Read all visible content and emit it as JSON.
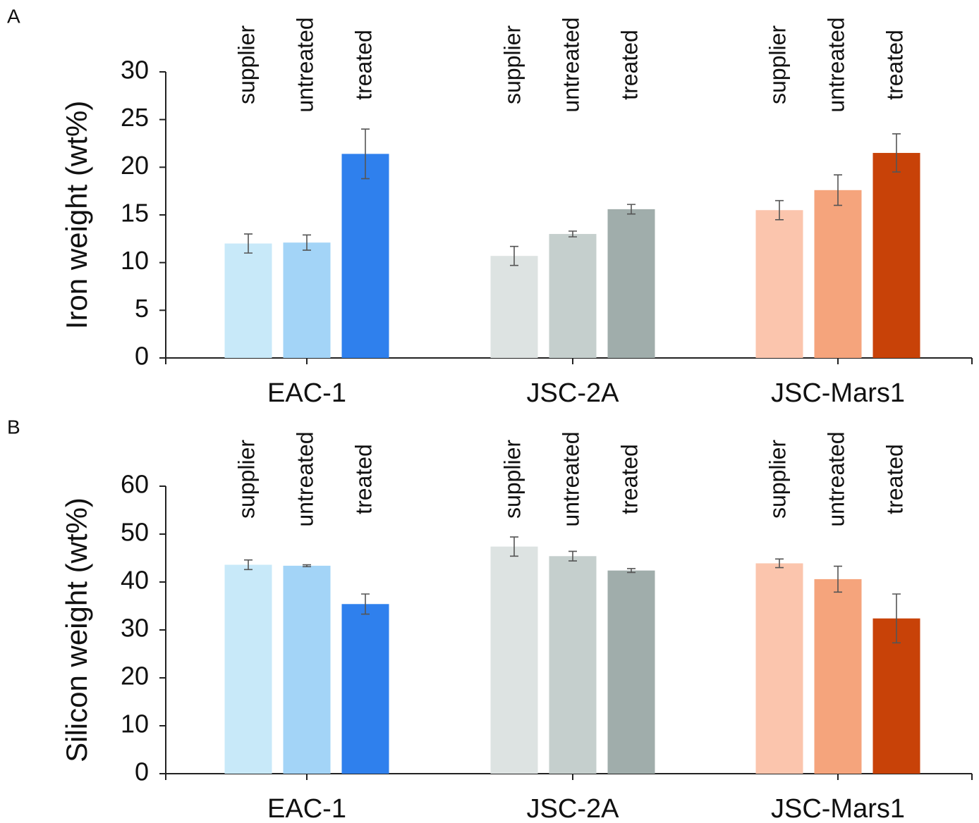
{
  "chart_data": [
    {
      "type": "bar",
      "panel": "A",
      "ylabel": "Iron weight (wt%)",
      "categories": [
        "EAC-1",
        "JSC-2A",
        "JSC-Mars1"
      ],
      "series": [
        {
          "name": "supplier",
          "colors": [
            "#c8e9f9",
            "#dde3e2",
            "#fbc5ad"
          ],
          "values": [
            12.0,
            10.7,
            15.5
          ],
          "errors": [
            1.0,
            1.0,
            1.0
          ]
        },
        {
          "name": "untreated",
          "colors": [
            "#a3d4f7",
            "#c5cfcd",
            "#f5a47c"
          ],
          "values": [
            12.1,
            13.0,
            17.6
          ],
          "errors": [
            0.8,
            0.3,
            1.6
          ]
        },
        {
          "name": "treated",
          "colors": [
            "#2f80ed",
            "#a0adab",
            "#c84208"
          ],
          "values": [
            21.4,
            15.6,
            21.5
          ],
          "errors": [
            2.6,
            0.5,
            2.0
          ]
        }
      ],
      "ylim": [
        0,
        30
      ],
      "yticks": [
        0,
        5,
        10,
        15,
        20,
        25,
        30
      ]
    },
    {
      "type": "bar",
      "panel": "B",
      "ylabel": "Silicon weight (wt%)",
      "categories": [
        "EAC-1",
        "JSC-2A",
        "JSC-Mars1"
      ],
      "series": [
        {
          "name": "supplier",
          "colors": [
            "#c8e9f9",
            "#dde3e2",
            "#fbc5ad"
          ],
          "values": [
            43.6,
            47.4,
            43.9
          ],
          "errors": [
            1.0,
            2.0,
            0.9
          ]
        },
        {
          "name": "untreated",
          "colors": [
            "#a3d4f7",
            "#c5cfcd",
            "#f5a47c"
          ],
          "values": [
            43.4,
            45.4,
            40.6
          ],
          "errors": [
            0.2,
            1.0,
            2.7
          ]
        },
        {
          "name": "treated",
          "colors": [
            "#2f80ed",
            "#a0adab",
            "#c84208"
          ],
          "values": [
            35.4,
            42.4,
            32.4
          ],
          "errors": [
            2.1,
            0.4,
            5.1
          ]
        }
      ],
      "ylim": [
        0,
        60
      ],
      "yticks": [
        0,
        10,
        20,
        30,
        40,
        50,
        60
      ]
    }
  ]
}
